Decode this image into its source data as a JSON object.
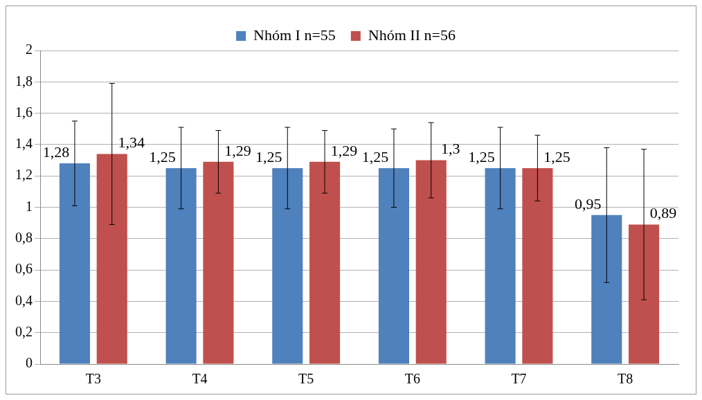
{
  "chart_data": {
    "type": "bar",
    "categories": [
      "T3",
      "T4",
      "T5",
      "T6",
      "T7",
      "T8"
    ],
    "series": [
      {
        "name": "Nhóm I n=55",
        "color": "#4f81bd",
        "values": [
          1.28,
          1.25,
          1.25,
          1.25,
          1.25,
          0.95
        ],
        "value_labels": [
          "1,28",
          "1,25",
          "1,25",
          "1,25",
          "1,25",
          "0,95"
        ],
        "errors": [
          0.27,
          0.26,
          0.26,
          0.25,
          0.26,
          0.43
        ]
      },
      {
        "name": "Nhóm II n=56",
        "color": "#c0504d",
        "values": [
          1.34,
          1.29,
          1.29,
          1.3,
          1.25,
          0.89
        ],
        "value_labels": [
          "1,34",
          "1,29",
          "1,29",
          "1,3",
          "1,25",
          "0,89"
        ],
        "errors": [
          0.45,
          0.2,
          0.2,
          0.24,
          0.21,
          0.48
        ]
      }
    ],
    "ylim": [
      0,
      2
    ],
    "yticks": [
      0,
      {
        "value": 0.2,
        "label": "0,2"
      },
      {
        "value": 0.4,
        "label": "0,4"
      },
      {
        "value": 0.6,
        "label": "0,6"
      },
      {
        "value": 0.8,
        "label": "0,8"
      },
      1,
      {
        "value": 1.2,
        "label": "1,2"
      },
      {
        "value": 1.4,
        "label": "1,4"
      },
      {
        "value": 1.6,
        "label": "1,6"
      },
      {
        "value": 1.8,
        "label": "1,8"
      },
      2
    ],
    "grid": "y",
    "legend": "top"
  }
}
